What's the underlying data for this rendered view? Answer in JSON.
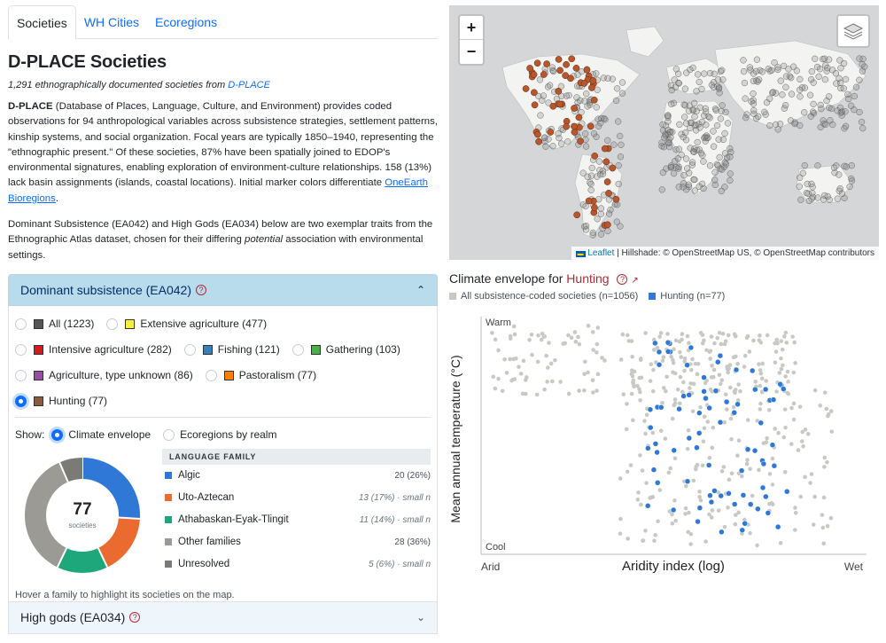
{
  "tabs": [
    {
      "label": "Societies",
      "active": true
    },
    {
      "label": "WH Cities",
      "active": false
    },
    {
      "label": "Ecoregions",
      "active": false
    }
  ],
  "title": "D-PLACE Societies",
  "subtitle": {
    "prefix": "1,291 ethnographically documented societies from ",
    "link": "D-PLACE"
  },
  "intro": {
    "bold": "D-PLACE",
    "text": " (Database of Places, Language, Culture, and Environment) provides coded observations for 94 anthropological variables across subsistence strategies, settlement patterns, kinship systems, and social organization. Focal years are typically 1850–1940, representing the \"ethnographic present.\" Of these societies, 87% have been spatially joined to EDOP's environmental signatures, enabling exploration of environment-culture relationships. 158 (13%) lack basin assignments (islands, coastal locations). Initial marker colors differentiate ",
    "link": "OneEarth Bioregions",
    "end": "."
  },
  "intro2": {
    "a": "Dominant Subsistence (EA042) and High Gods (EA034) below are two exemplar traits from the Ethnographic Atlas dataset, chosen for their differing ",
    "em": "potential",
    "b": " association with environmental settings."
  },
  "accordion1": {
    "title": "Dominant subsistence (EA042)",
    "help": "?",
    "chevron": "⌃",
    "options": [
      {
        "label": "All (1223)",
        "color": "#555555",
        "selected": false
      },
      {
        "label": "Extensive agriculture (477)",
        "color": "#f5f03c",
        "selected": false
      },
      {
        "label": "Intensive agriculture (282)",
        "color": "#d7191c",
        "selected": false
      },
      {
        "label": "Fishing (121)",
        "color": "#3a7fb5",
        "selected": false
      },
      {
        "label": "Gathering (103)",
        "color": "#4daf4a",
        "selected": false
      },
      {
        "label": "Agriculture, type unknown (86)",
        "color": "#984ea3",
        "selected": false
      },
      {
        "label": "Pastoralism (77)",
        "color": "#ff7f00",
        "selected": false
      },
      {
        "label": "Hunting (77)",
        "color": "#8c5a3c",
        "selected": true
      }
    ],
    "show_label": "Show:",
    "show_options": [
      {
        "label": "Climate envelope",
        "selected": true
      },
      {
        "label": "Ecoregions by realm",
        "selected": false
      }
    ],
    "donut": {
      "count": "77",
      "label": "societies"
    },
    "family_header": "LANGUAGE FAMILY",
    "families": [
      {
        "name": "Algic",
        "value": "20 (26%)",
        "small": false,
        "color": "#2f78d6",
        "n": 20
      },
      {
        "name": "Uto-Aztecan",
        "value": "13 (17%) · small n",
        "small": true,
        "color": "#ea6a30",
        "n": 13
      },
      {
        "name": "Athabaskan-Eyak-Tlingit",
        "value": "11 (14%) · small n",
        "small": true,
        "color": "#1ea77a",
        "n": 11
      },
      {
        "name": "Other families",
        "value": "28 (36%)",
        "small": false,
        "color": "#9c9a95",
        "n": 28
      },
      {
        "name": "Unresolved",
        "value": "5 (6%) · small n",
        "small": true,
        "color": "#7a7a76",
        "n": 5
      }
    ],
    "hover_note": "Hover a family to highlight its societies on the map."
  },
  "accordion2": {
    "title": "High gods (EA034)",
    "help": "?",
    "chevron": "⌄"
  },
  "map": {
    "zoom_in": "+",
    "zoom_out": "−",
    "attribution_link": "Leaflet",
    "attribution_text": " | Hillshade: © OpenStreetMap US, © OpenStreetMap contributors"
  },
  "scatter": {
    "title_prefix": "Climate envelope for ",
    "title_highlight": "Hunting",
    "legend_all": "All subsistence-coded societies (n=1056)",
    "legend_sel": "Hunting (n=77)",
    "y_top": "Warm",
    "y_bottom": "Cool",
    "x_left": "Arid",
    "x_right": "Wet",
    "xlabel": "Aridity index (log)",
    "ylabel": "Mean annual temperature (°C)"
  },
  "colors": {
    "all_points": "#c9c9c4",
    "selected_points": "#2f78d6",
    "hunting_marker": "#b8562e"
  },
  "chart_data": {
    "type": "scatter",
    "title": "Climate envelope for Hunting",
    "xlabel": "Aridity index (log)",
    "ylabel": "Mean annual temperature (°C)",
    "series": [
      {
        "name": "All subsistence-coded societies (n=1056)",
        "n": 1056
      },
      {
        "name": "Hunting (n=77)",
        "n": 77
      }
    ]
  }
}
